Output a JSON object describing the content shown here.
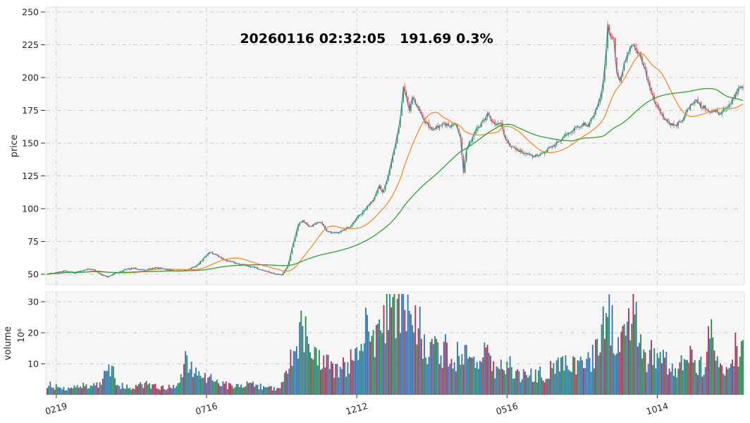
{
  "title": {
    "text": "20260116 02:32:05   191.69 0.3%"
  },
  "style": {
    "figure_bg": "#ffffff",
    "axes_bg": "#f6f6f7",
    "axes_border": "#dcdcdc",
    "grid_color": "#c9c9c9",
    "tick_color": "#333333",
    "text_color": "#262626",
    "seed": 42
  },
  "chart_data": [
    {
      "type": "candlestick",
      "panel": "price",
      "title": "20260116 02:32:05   191.69 0.3%",
      "ylabel": "price",
      "ylim": [
        44,
        255
      ],
      "yticks": [
        50,
        75,
        100,
        125,
        150,
        175,
        200,
        225,
        250
      ],
      "x_tick_labels": [
        "0219",
        "0716",
        "1212",
        "0516",
        "1014"
      ],
      "x_tick_days": [
        6,
        106,
        206,
        306,
        406
      ],
      "num_days": 464,
      "last_close": 191.69,
      "grid": true,
      "colors": {
        "up": "#2d9448",
        "down": "#df4141"
      },
      "overlays": [
        {
          "name": "close-line",
          "type": "line",
          "color": "#4a7ab5"
        },
        {
          "name": "ma-short",
          "type": "sma",
          "window": 25,
          "color": "#f68b2a"
        },
        {
          "name": "ma-long",
          "type": "sma",
          "window": 75,
          "color": "#31a031"
        }
      ],
      "close_keypoints": [
        [
          0,
          50
        ],
        [
          5,
          51
        ],
        [
          12,
          52.5
        ],
        [
          18,
          51
        ],
        [
          25,
          53.5
        ],
        [
          30,
          54
        ],
        [
          35,
          50.5
        ],
        [
          40,
          48
        ],
        [
          45,
          50.5
        ],
        [
          52,
          53.5
        ],
        [
          58,
          54.5
        ],
        [
          65,
          53
        ],
        [
          72,
          55
        ],
        [
          80,
          53.5
        ],
        [
          88,
          52
        ],
        [
          95,
          54
        ],
        [
          100,
          57
        ],
        [
          104,
          62
        ],
        [
          108,
          67
        ],
        [
          112,
          65
        ],
        [
          118,
          61
        ],
        [
          125,
          58.5
        ],
        [
          132,
          57
        ],
        [
          138,
          55
        ],
        [
          145,
          52.5
        ],
        [
          152,
          50
        ],
        [
          156,
          49.5
        ],
        [
          160,
          56
        ],
        [
          164,
          75
        ],
        [
          167,
          88
        ],
        [
          170,
          91
        ],
        [
          174,
          86
        ],
        [
          178,
          88
        ],
        [
          182,
          90
        ],
        [
          186,
          83
        ],
        [
          190,
          81
        ],
        [
          196,
          83
        ],
        [
          202,
          86
        ],
        [
          206,
          93
        ],
        [
          210,
          97
        ],
        [
          214,
          103
        ],
        [
          218,
          109
        ],
        [
          221,
          117
        ],
        [
          223,
          112
        ],
        [
          226,
          122
        ],
        [
          229,
          136
        ],
        [
          232,
          150
        ],
        [
          235,
          170
        ],
        [
          237,
          193
        ],
        [
          239,
          185
        ],
        [
          241,
          175
        ],
        [
          243,
          186
        ],
        [
          246,
          178
        ],
        [
          249,
          172
        ],
        [
          252,
          166
        ],
        [
          256,
          160
        ],
        [
          260,
          163
        ],
        [
          264,
          165
        ],
        [
          268,
          162
        ],
        [
          272,
          165
        ],
        [
          275,
          155
        ],
        [
          277,
          128
        ],
        [
          279,
          145
        ],
        [
          282,
          152
        ],
        [
          285,
          160
        ],
        [
          288,
          163
        ],
        [
          291,
          168
        ],
        [
          293,
          172
        ],
        [
          296,
          166
        ],
        [
          299,
          164
        ],
        [
          302,
          165
        ],
        [
          305,
          152
        ],
        [
          308,
          148
        ],
        [
          312,
          145
        ],
        [
          316,
          143
        ],
        [
          320,
          141
        ],
        [
          325,
          140
        ],
        [
          330,
          142
        ],
        [
          334,
          146
        ],
        [
          338,
          149
        ],
        [
          342,
          152
        ],
        [
          346,
          158
        ],
        [
          350,
          160
        ],
        [
          354,
          163
        ],
        [
          357,
          165
        ],
        [
          360,
          162
        ],
        [
          362,
          168
        ],
        [
          365,
          175
        ],
        [
          368,
          185
        ],
        [
          370,
          197
        ],
        [
          372,
          222
        ],
        [
          373,
          240
        ],
        [
          375,
          230
        ],
        [
          377,
          228
        ],
        [
          379,
          205
        ],
        [
          381,
          198
        ],
        [
          384,
          210
        ],
        [
          387,
          220
        ],
        [
          389,
          226
        ],
        [
          391,
          222
        ],
        [
          394,
          218
        ],
        [
          397,
          210
        ],
        [
          400,
          195
        ],
        [
          403,
          185
        ],
        [
          406,
          178
        ],
        [
          410,
          170
        ],
        [
          414,
          165
        ],
        [
          418,
          163
        ],
        [
          422,
          167
        ],
        [
          426,
          175
        ],
        [
          429,
          180
        ],
        [
          432,
          183
        ],
        [
          435,
          178
        ],
        [
          438,
          177
        ],
        [
          441,
          173
        ],
        [
          444,
          175
        ],
        [
          447,
          172
        ],
        [
          450,
          175
        ],
        [
          453,
          178
        ],
        [
          456,
          183
        ],
        [
          459,
          190
        ],
        [
          461,
          194
        ],
        [
          463,
          191.69
        ]
      ]
    },
    {
      "type": "bar",
      "panel": "volume",
      "ylabel": "volume",
      "y_exponent_label": "10⁶",
      "ylim": [
        0,
        33
      ],
      "yticks": [
        10,
        20,
        30
      ],
      "grid": true,
      "bar_colors": {
        "blue": "#3b78ad",
        "red": "#a93a5c",
        "green": "#2e8b57"
      },
      "color_weights": {
        "blue": 0.42,
        "red": 0.29,
        "green": 0.29
      },
      "volume_keypoints": [
        [
          0,
          3.5
        ],
        [
          8,
          2.2
        ],
        [
          16,
          2
        ],
        [
          24,
          2.8
        ],
        [
          33,
          3.2
        ],
        [
          40,
          6.5
        ],
        [
          43,
          9
        ],
        [
          46,
          3
        ],
        [
          55,
          2.5
        ],
        [
          62,
          3.5
        ],
        [
          70,
          3
        ],
        [
          78,
          2.2
        ],
        [
          85,
          3
        ],
        [
          92,
          10.5
        ],
        [
          97,
          7
        ],
        [
          103,
          5
        ],
        [
          108,
          6.5
        ],
        [
          113,
          4
        ],
        [
          120,
          3
        ],
        [
          128,
          2.5
        ],
        [
          135,
          3.5
        ],
        [
          140,
          2.8
        ],
        [
          147,
          2.2
        ],
        [
          152,
          2
        ],
        [
          156,
          3.5
        ],
        [
          160,
          8
        ],
        [
          164,
          15
        ],
        [
          168,
          19
        ],
        [
          171,
          22
        ],
        [
          175,
          13
        ],
        [
          180,
          14
        ],
        [
          184,
          11
        ],
        [
          188,
          9
        ],
        [
          193,
          7.5
        ],
        [
          198,
          9
        ],
        [
          203,
          12
        ],
        [
          207,
          16
        ],
        [
          211,
          20
        ],
        [
          215,
          21
        ],
        [
          219,
          18
        ],
        [
          223,
          24
        ],
        [
          227,
          27
        ],
        [
          230,
          30
        ],
        [
          233,
          26
        ],
        [
          236,
          28
        ],
        [
          239,
          31
        ],
        [
          241,
          24
        ],
        [
          244,
          20
        ],
        [
          247,
          25
        ],
        [
          250,
          18
        ],
        [
          253,
          14
        ],
        [
          257,
          16
        ],
        [
          261,
          12
        ],
        [
          265,
          14
        ],
        [
          269,
          11
        ],
        [
          273,
          13
        ],
        [
          276,
          16
        ],
        [
          279,
          12
        ],
        [
          283,
          9
        ],
        [
          287,
          13
        ],
        [
          291,
          15
        ],
        [
          295,
          10
        ],
        [
          299,
          8
        ],
        [
          303,
          9
        ],
        [
          307,
          11
        ],
        [
          311,
          7
        ],
        [
          315,
          6
        ],
        [
          319,
          8
        ],
        [
          323,
          5.5
        ],
        [
          327,
          7
        ],
        [
          331,
          6
        ],
        [
          335,
          8
        ],
        [
          339,
          10
        ],
        [
          343,
          9
        ],
        [
          347,
          12
        ],
        [
          351,
          9
        ],
        [
          355,
          11
        ],
        [
          359,
          9
        ],
        [
          363,
          13
        ],
        [
          366,
          16
        ],
        [
          369,
          18
        ],
        [
          372,
          26
        ],
        [
          375,
          22
        ],
        [
          378,
          18
        ],
        [
          381,
          16
        ],
        [
          384,
          20
        ],
        [
          387,
          24
        ],
        [
          390,
          29
        ],
        [
          393,
          18
        ],
        [
          396,
          14
        ],
        [
          399,
          12
        ],
        [
          402,
          13
        ],
        [
          405,
          11
        ],
        [
          408,
          10
        ],
        [
          411,
          12
        ],
        [
          414,
          9
        ],
        [
          417,
          8
        ],
        [
          420,
          10
        ],
        [
          423,
          13
        ],
        [
          426,
          14
        ],
        [
          429,
          11
        ],
        [
          432,
          10
        ],
        [
          435,
          9
        ],
        [
          438,
          10
        ],
        [
          441,
          21
        ],
        [
          444,
          12
        ],
        [
          447,
          9
        ],
        [
          450,
          7
        ],
        [
          453,
          9
        ],
        [
          456,
          12
        ],
        [
          459,
          16
        ],
        [
          461,
          14
        ],
        [
          463,
          16
        ]
      ]
    }
  ]
}
